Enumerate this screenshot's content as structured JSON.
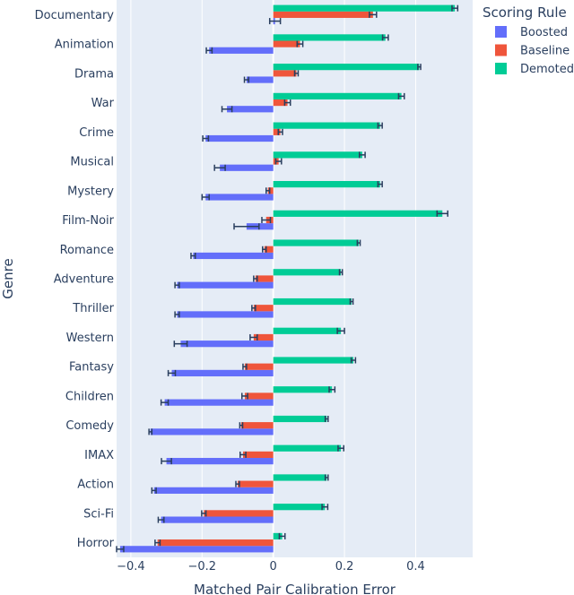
{
  "chart_data": {
    "type": "bar",
    "orientation": "horizontal",
    "title": "",
    "xlabel": "Matched Pair Calibration Error",
    "ylabel": "Genre",
    "xlim": [
      -0.44,
      0.56
    ],
    "xticks": [
      -0.4,
      -0.2,
      0,
      0.2,
      0.4
    ],
    "xtick_labels": [
      "−0.4",
      "−0.2",
      "0",
      "0.2",
      "0.4"
    ],
    "grid": true,
    "legend_title": "Scoring Rule",
    "legend_position": "top-right",
    "categories": [
      "Documentary",
      "Animation",
      "Drama",
      "War",
      "Crime",
      "Musical",
      "Mystery",
      "Film-Noir",
      "Romance",
      "Adventure",
      "Thriller",
      "Western",
      "Fantasy",
      "Children",
      "Comedy",
      "IMAX",
      "Action",
      "Sci-Fi",
      "Horror"
    ],
    "series": [
      {
        "name": "Boosted",
        "color": "#636efa",
        "values": [
          0.005,
          -0.18,
          -0.075,
          -0.13,
          -0.19,
          -0.15,
          -0.19,
          -0.075,
          -0.225,
          -0.27,
          -0.27,
          -0.26,
          -0.285,
          -0.305,
          -0.345,
          -0.3,
          -0.335,
          -0.315,
          -0.43
        ],
        "errors": [
          0.015,
          0.008,
          0.006,
          0.014,
          0.008,
          0.015,
          0.01,
          0.035,
          0.006,
          0.006,
          0.006,
          0.018,
          0.01,
          0.01,
          0.004,
          0.014,
          0.006,
          0.008,
          0.01
        ]
      },
      {
        "name": "Baseline",
        "color": "#ef553b",
        "values": [
          0.28,
          0.075,
          0.065,
          0.04,
          0.02,
          0.015,
          -0.015,
          -0.02,
          -0.025,
          -0.05,
          -0.055,
          -0.055,
          -0.08,
          -0.08,
          -0.09,
          -0.085,
          -0.1,
          -0.195,
          -0.325
        ],
        "errors": [
          0.01,
          0.008,
          0.005,
          0.008,
          0.006,
          0.008,
          0.005,
          0.012,
          0.005,
          0.005,
          0.005,
          0.01,
          0.005,
          0.008,
          0.004,
          0.008,
          0.005,
          0.006,
          0.007
        ]
      },
      {
        "name": "Demoted",
        "color": "#00cc96",
        "values": [
          0.51,
          0.315,
          0.41,
          0.36,
          0.3,
          0.25,
          0.3,
          0.475,
          0.24,
          0.19,
          0.22,
          0.19,
          0.225,
          0.165,
          0.15,
          0.19,
          0.15,
          0.145,
          0.025
        ],
        "errors": [
          0.008,
          0.008,
          0.004,
          0.008,
          0.006,
          0.008,
          0.006,
          0.015,
          0.004,
          0.004,
          0.004,
          0.01,
          0.006,
          0.008,
          0.004,
          0.008,
          0.004,
          0.008,
          0.008
        ]
      }
    ]
  }
}
